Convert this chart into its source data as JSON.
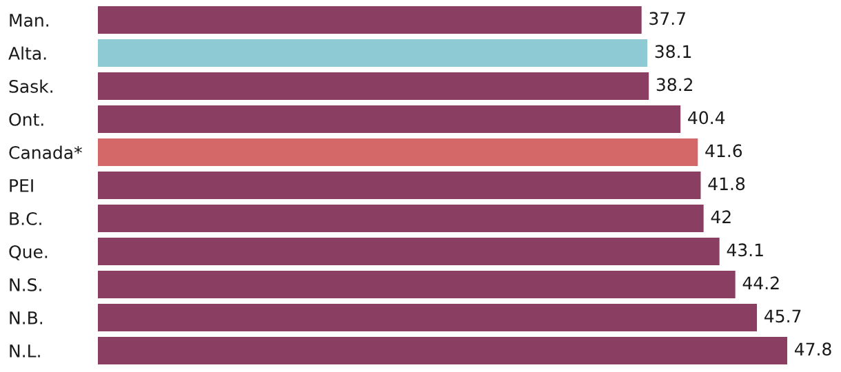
{
  "chart_data": {
    "type": "bar",
    "orientation": "horizontal",
    "categories": [
      "Man.",
      "Alta.",
      "Sask.",
      "Ont.",
      "Canada*",
      "PEI",
      "B.C.",
      "Que.",
      "N.S.",
      "N.B.",
      "N.L."
    ],
    "values": [
      37.7,
      38.1,
      38.2,
      40.4,
      41.6,
      41.8,
      42,
      43.1,
      44.2,
      45.7,
      47.8
    ],
    "colors": [
      "#8a3e62",
      "#8ecad4",
      "#8a3e62",
      "#8a3e62",
      "#d46767",
      "#8a3e62",
      "#8a3e62",
      "#8a3e62",
      "#8a3e62",
      "#8a3e62",
      "#8a3e62"
    ],
    "data_labels": true,
    "tick_labels": "y"
  }
}
